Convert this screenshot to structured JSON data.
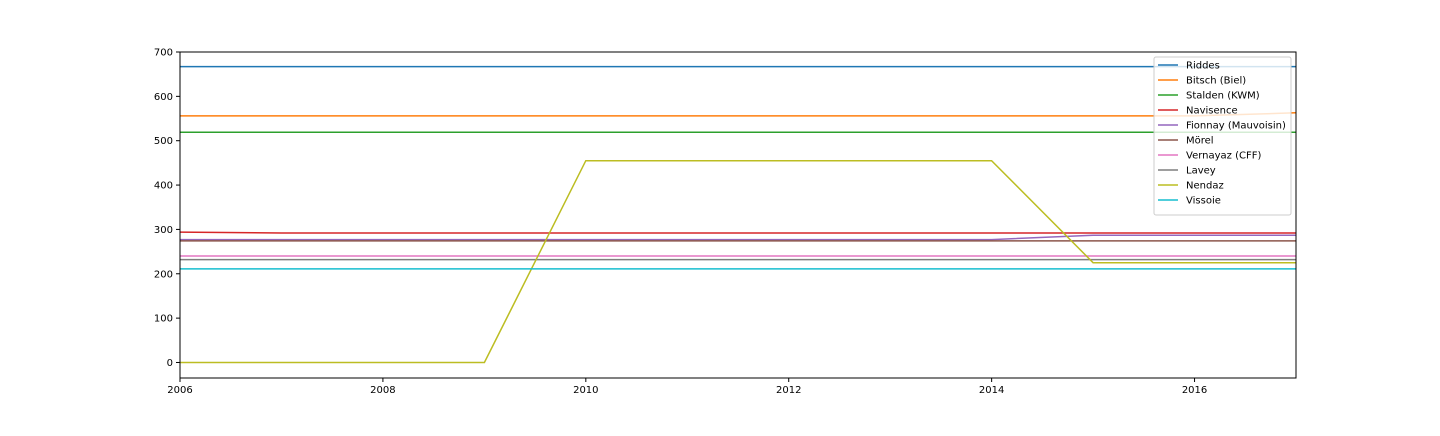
{
  "chart_data": {
    "type": "line",
    "title": "",
    "xlabel": "",
    "ylabel": "",
    "xlim": [
      2006,
      2017
    ],
    "ylim": [
      -35,
      700
    ],
    "xticks": [
      2006,
      2008,
      2010,
      2012,
      2014,
      2016
    ],
    "yticks": [
      0,
      100,
      200,
      300,
      400,
      500,
      600,
      700
    ],
    "grid": false,
    "legend_position": "top-right",
    "x": [
      2006,
      2007,
      2008,
      2009,
      2010,
      2011,
      2012,
      2013,
      2014,
      2015,
      2016,
      2017
    ],
    "series": [
      {
        "name": "Riddes",
        "color": "#1f77b4",
        "values": [
          667,
          667,
          667,
          667,
          667,
          667,
          667,
          667,
          667,
          667,
          667,
          667
        ]
      },
      {
        "name": "Bitsch (Biel)",
        "color": "#ff7f0e",
        "values": [
          556,
          556,
          556,
          556,
          556,
          556,
          556,
          556,
          556,
          556,
          556,
          563
        ]
      },
      {
        "name": "Stalden (KWM)",
        "color": "#2ca02c",
        "values": [
          519,
          519,
          519,
          519,
          519,
          519,
          519,
          519,
          519,
          519,
          519,
          519
        ]
      },
      {
        "name": "Navisence",
        "color": "#d62728",
        "values": [
          294,
          292,
          292,
          292,
          292,
          292,
          292,
          292,
          292,
          292,
          292,
          292
        ]
      },
      {
        "name": "Fionnay (Mauvoisin)",
        "color": "#9467bd",
        "values": [
          277,
          277,
          277,
          277,
          277,
          277,
          277,
          277,
          277,
          287,
          287,
          287
        ]
      },
      {
        "name": "Mörel",
        "color": "#8c564b",
        "values": [
          274,
          274,
          274,
          274,
          274,
          274,
          274,
          274,
          274,
          274,
          274,
          274
        ]
      },
      {
        "name": "Vernayaz (CFF)",
        "color": "#e377c2",
        "values": [
          240,
          240,
          240,
          240,
          240,
          240,
          240,
          240,
          240,
          240,
          240,
          240
        ]
      },
      {
        "name": "Lavey",
        "color": "#7f7f7f",
        "values": [
          232,
          232,
          232,
          232,
          232,
          232,
          232,
          232,
          232,
          232,
          232,
          232
        ]
      },
      {
        "name": "Nendaz",
        "color": "#bcbd22",
        "values": [
          0,
          0,
          0,
          0,
          455,
          455,
          455,
          455,
          455,
          225,
          225,
          225
        ]
      },
      {
        "name": "Vissoie",
        "color": "#17becf",
        "values": [
          211,
          211,
          211,
          211,
          211,
          211,
          211,
          211,
          211,
          211,
          211,
          211
        ]
      }
    ]
  }
}
